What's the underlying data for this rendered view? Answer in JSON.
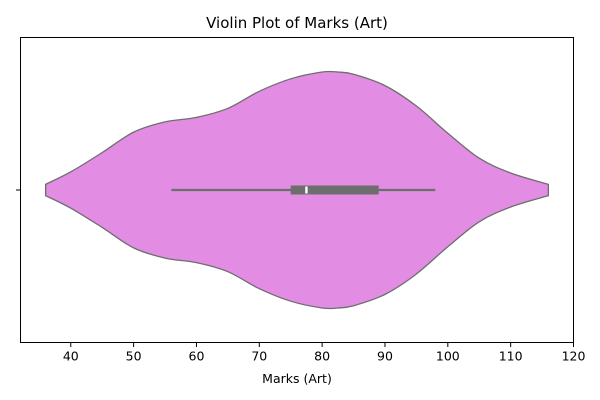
{
  "chart_data": {
    "type": "violin",
    "title": "Violin Plot of Marks (Art)",
    "xlabel": "Marks (Art)",
    "ylabel": "",
    "xlim": [
      32,
      120
    ],
    "xticks": [
      40,
      50,
      60,
      70,
      80,
      90,
      100,
      110,
      120
    ],
    "grid": false,
    "orientation": "horizontal",
    "color": "#e28ce3",
    "edge_color": "#6e6e6e",
    "box_color": "#6e6e6e",
    "median_color": "#ffffff",
    "summary": {
      "min": 56,
      "q1": 75,
      "median": 77.5,
      "q3": 89,
      "max": 98
    },
    "density": {
      "x": [
        36,
        40,
        45,
        50,
        55,
        60,
        65,
        70,
        75,
        80,
        82.5,
        85,
        90,
        95,
        100,
        105,
        110,
        116
      ],
      "values": [
        0.05,
        0.16,
        0.33,
        0.51,
        0.6,
        0.64,
        0.72,
        0.87,
        0.98,
        1.04,
        1.04,
        1.02,
        0.92,
        0.74,
        0.5,
        0.28,
        0.15,
        0.05
      ]
    }
  }
}
